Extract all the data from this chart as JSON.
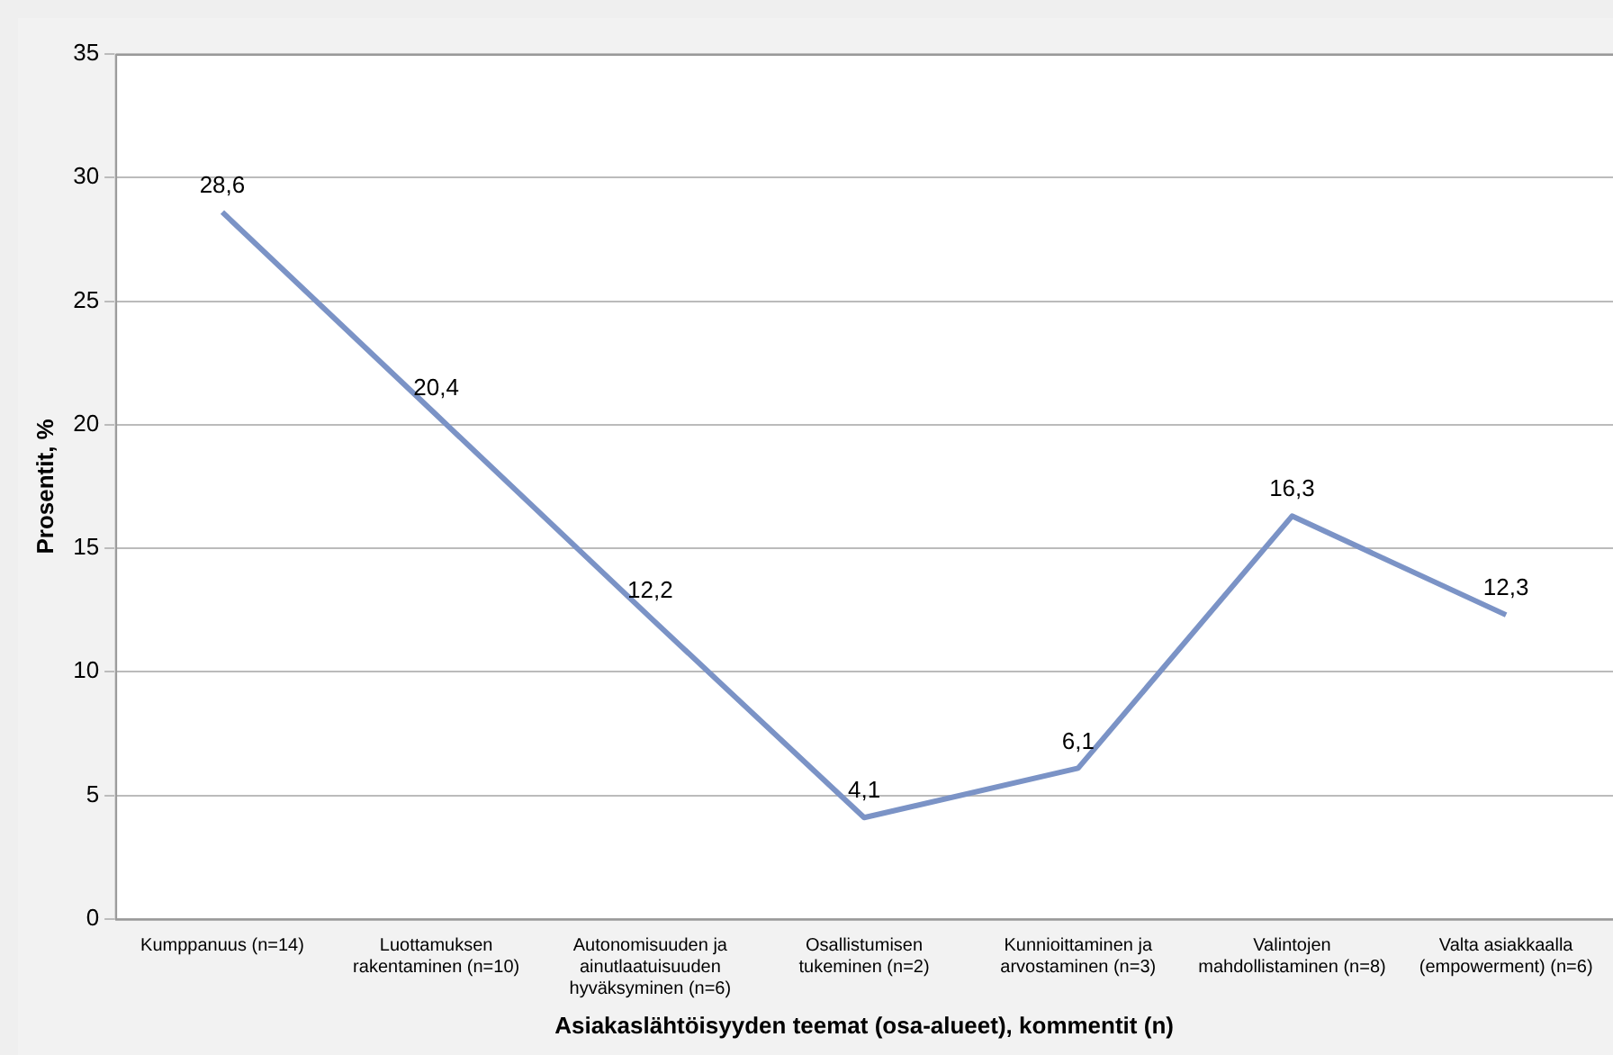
{
  "chart_data": {
    "type": "line",
    "xlabel": "Asiakaslähtöisyyden teemat (osa-alueet), kommentit (n)",
    "ylabel": "Prosentit, %",
    "categories": [
      "Kumppanuus (n=14)",
      "Luottamuksen rakentaminen (n=10)",
      "Autonomisuuden ja ainutlaatuisuuden hyväksyminen (n=6)",
      "Osallistumisen tukeminen (n=2)",
      "Kunnioittaminen ja arvostaminen (n=3)",
      "Valintojen mahdollistaminen (n=8)",
      "Valta asiakkaalla (empowerment) (n=6)"
    ],
    "series": [
      {
        "color": "#7b93c6",
        "values": [
          28.6,
          20.4,
          12.2,
          4.1,
          6.1,
          16.3,
          12.3
        ]
      }
    ],
    "value_labels": [
      "28,6",
      "20,4",
      "12,2",
      "4,1",
      "6,1",
      "16,3",
      "12,3"
    ],
    "ylim": [
      0,
      35
    ],
    "yticks": [
      0,
      5,
      10,
      15,
      20,
      25,
      30,
      35
    ],
    "grid": "y",
    "legend": false,
    "marker": "none",
    "line_style": "solid"
  }
}
